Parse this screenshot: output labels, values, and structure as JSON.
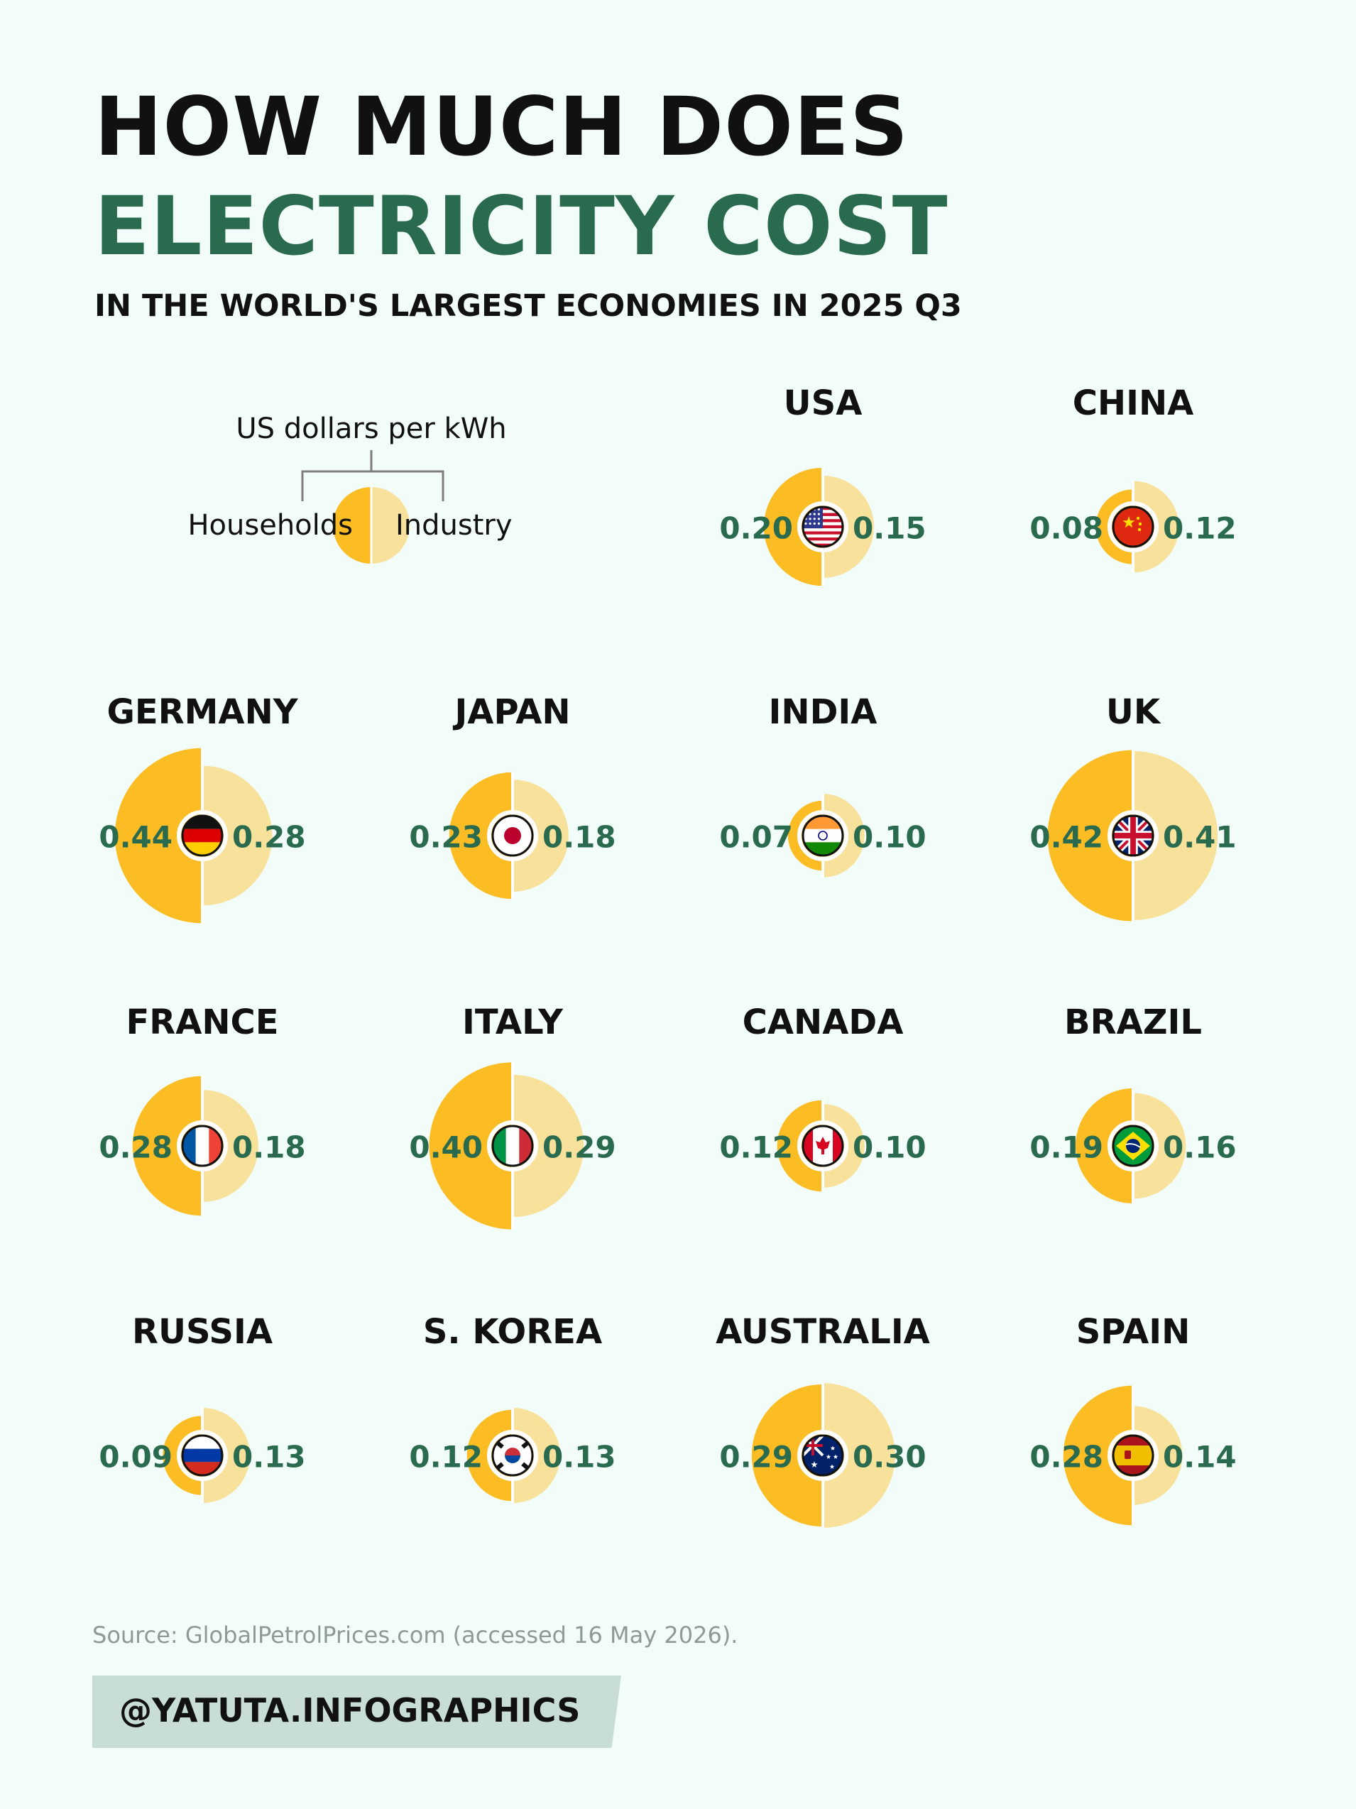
{
  "header": {
    "title_line1": "HOW MUCH DOES",
    "title_line2": "ELECTRICITY COST",
    "subtitle": "IN THE WORLD'S LARGEST ECONOMIES IN 2025 Q3"
  },
  "legend": {
    "unit": "US dollars per kWh",
    "left_label": "Households",
    "right_label": "Industry"
  },
  "colors": {
    "households": "#fbbd23",
    "industry": "#f8e19a",
    "value_text": "#2a6b4f",
    "title_accent": "#2a6b4f",
    "background": "#f2fdf9"
  },
  "chart_data": {
    "type": "semicircle-pairs",
    "unit": "US dollars per kWh",
    "series": [
      {
        "name": "Households"
      },
      {
        "name": "Industry"
      }
    ],
    "countries": [
      {
        "name": "USA",
        "households": 0.2,
        "industry": 0.15,
        "households_label": "0.20",
        "industry_label": "0.15",
        "flag": "usa-flag-icon"
      },
      {
        "name": "CHINA",
        "households": 0.08,
        "industry": 0.12,
        "households_label": "0.08",
        "industry_label": "0.12",
        "flag": "china-flag-icon"
      },
      {
        "name": "GERMANY",
        "households": 0.44,
        "industry": 0.28,
        "households_label": "0.44",
        "industry_label": "0.28",
        "flag": "germany-flag-icon"
      },
      {
        "name": "JAPAN",
        "households": 0.23,
        "industry": 0.18,
        "households_label": "0.23",
        "industry_label": "0.18",
        "flag": "japan-flag-icon"
      },
      {
        "name": "INDIA",
        "households": 0.07,
        "industry": 0.1,
        "households_label": "0.07",
        "industry_label": "0.10",
        "flag": "india-flag-icon"
      },
      {
        "name": "UK",
        "households": 0.42,
        "industry": 0.41,
        "households_label": "0.42",
        "industry_label": "0.41",
        "flag": "uk-flag-icon"
      },
      {
        "name": "FRANCE",
        "households": 0.28,
        "industry": 0.18,
        "households_label": "0.28",
        "industry_label": "0.18",
        "flag": "france-flag-icon"
      },
      {
        "name": "ITALY",
        "households": 0.4,
        "industry": 0.29,
        "households_label": "0.40",
        "industry_label": "0.29",
        "flag": "italy-flag-icon"
      },
      {
        "name": "CANADA",
        "households": 0.12,
        "industry": 0.1,
        "households_label": "0.12",
        "industry_label": "0.10",
        "flag": "canada-flag-icon"
      },
      {
        "name": "BRAZIL",
        "households": 0.19,
        "industry": 0.16,
        "households_label": "0.19",
        "industry_label": "0.16",
        "flag": "brazil-flag-icon"
      },
      {
        "name": "RUSSIA",
        "households": 0.09,
        "industry": 0.13,
        "households_label": "0.09",
        "industry_label": "0.13",
        "flag": "russia-flag-icon"
      },
      {
        "name": "S. KOREA",
        "households": 0.12,
        "industry": 0.13,
        "households_label": "0.12",
        "industry_label": "0.13",
        "flag": "south-korea-flag-icon"
      },
      {
        "name": "AUSTRALIA",
        "households": 0.29,
        "industry": 0.3,
        "households_label": "0.29",
        "industry_label": "0.30",
        "flag": "australia-flag-icon"
      },
      {
        "name": "SPAIN",
        "households": 0.28,
        "industry": 0.14,
        "households_label": "0.28",
        "industry_label": "0.14",
        "flag": "spain-flag-icon"
      }
    ]
  },
  "footer": {
    "source": "Source: GlobalPetrolPrices.com (accessed 16 May 2026).",
    "handle": "@YATUTA.INFOGRAPHICS"
  }
}
